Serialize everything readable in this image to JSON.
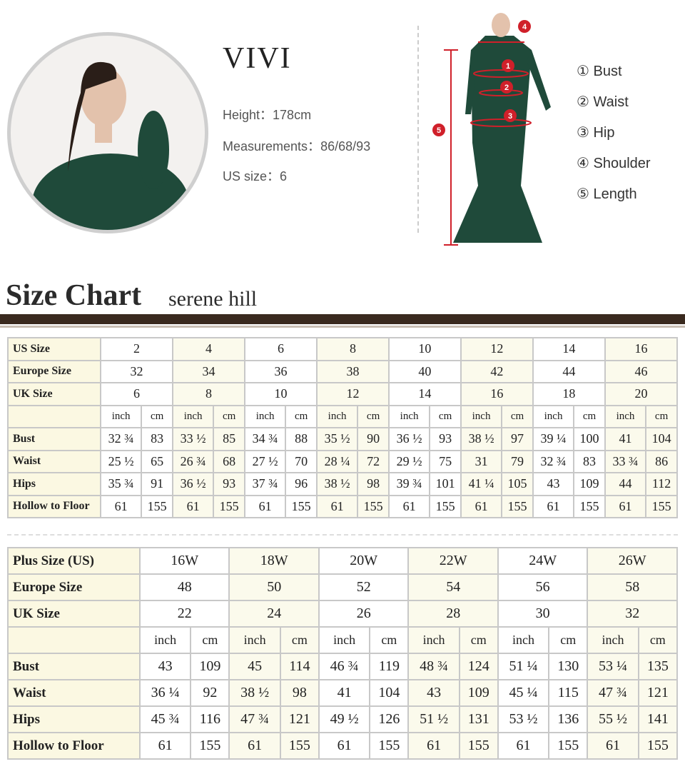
{
  "model": {
    "name": "VIVI",
    "height_label": "Height：",
    "height": "178cm",
    "measurements_label": "Measurements：",
    "measurements": "86/68/93",
    "us_size_label": "US size：",
    "us_size": "6"
  },
  "diagram": {
    "markers": [
      "1",
      "2",
      "3",
      "4",
      "5"
    ],
    "marker_color": "#d0202a"
  },
  "legend": [
    "① Bust",
    "② Waist",
    "③ Hip",
    "④ Shoulder",
    "⑤ Length"
  ],
  "title": {
    "text": "Size Chart",
    "brand": "serene hill"
  },
  "standard_table": {
    "size_rows": [
      {
        "label": "US Size",
        "values": [
          "2",
          "4",
          "6",
          "8",
          "10",
          "12",
          "14",
          "16"
        ]
      },
      {
        "label": "Europe Size",
        "values": [
          "32",
          "34",
          "36",
          "38",
          "40",
          "42",
          "44",
          "46"
        ]
      },
      {
        "label": "UK Size",
        "values": [
          "6",
          "8",
          "10",
          "12",
          "14",
          "16",
          "18",
          "20"
        ]
      }
    ],
    "units": [
      "inch",
      "cm"
    ],
    "measure_rows": [
      {
        "label": "Bust",
        "values": [
          "32 ¾",
          "83",
          "33 ½",
          "85",
          "34 ¾",
          "88",
          "35 ½",
          "90",
          "36 ½",
          "93",
          "38 ½",
          "97",
          "39 ¼",
          "100",
          "41",
          "104"
        ]
      },
      {
        "label": "Waist",
        "values": [
          "25 ½",
          "65",
          "26 ¾",
          "68",
          "27 ½",
          "70",
          "28 ¼",
          "72",
          "29 ½",
          "75",
          "31",
          "79",
          "32 ¾",
          "83",
          "33 ¾",
          "86"
        ]
      },
      {
        "label": "Hips",
        "values": [
          "35 ¾",
          "91",
          "36 ½",
          "93",
          "37 ¾",
          "96",
          "38 ½",
          "98",
          "39 ¾",
          "101",
          "41 ¼",
          "105",
          "43",
          "109",
          "44",
          "112"
        ]
      },
      {
        "label": "Hollow to Floor",
        "values": [
          "61",
          "155",
          "61",
          "155",
          "61",
          "155",
          "61",
          "155",
          "61",
          "155",
          "61",
          "155",
          "61",
          "155",
          "61",
          "155"
        ]
      }
    ]
  },
  "plus_table": {
    "size_rows": [
      {
        "label": "Plus Size (US)",
        "values": [
          "16W",
          "18W",
          "20W",
          "22W",
          "24W",
          "26W"
        ]
      },
      {
        "label": "Europe Size",
        "values": [
          "48",
          "50",
          "52",
          "54",
          "56",
          "58"
        ]
      },
      {
        "label": "UK Size",
        "values": [
          "22",
          "24",
          "26",
          "28",
          "30",
          "32"
        ]
      }
    ],
    "units": [
      "inch",
      "cm"
    ],
    "measure_rows": [
      {
        "label": "Bust",
        "values": [
          "43",
          "109",
          "45",
          "114",
          "46 ¾",
          "119",
          "48 ¾",
          "124",
          "51 ¼",
          "130",
          "53 ¼",
          "135"
        ]
      },
      {
        "label": "Waist",
        "values": [
          "36 ¼",
          "92",
          "38 ½",
          "98",
          "41",
          "104",
          "43",
          "109",
          "45 ¼",
          "115",
          "47 ¾",
          "121"
        ]
      },
      {
        "label": "Hips",
        "values": [
          "45 ¾",
          "116",
          "47 ¾",
          "121",
          "49 ½",
          "126",
          "51 ½",
          "131",
          "53 ½",
          "136",
          "55 ½",
          "141"
        ]
      },
      {
        "label": "Hollow to Floor",
        "values": [
          "61",
          "155",
          "61",
          "155",
          "61",
          "155",
          "61",
          "155",
          "61",
          "155",
          "61",
          "155"
        ]
      }
    ]
  }
}
